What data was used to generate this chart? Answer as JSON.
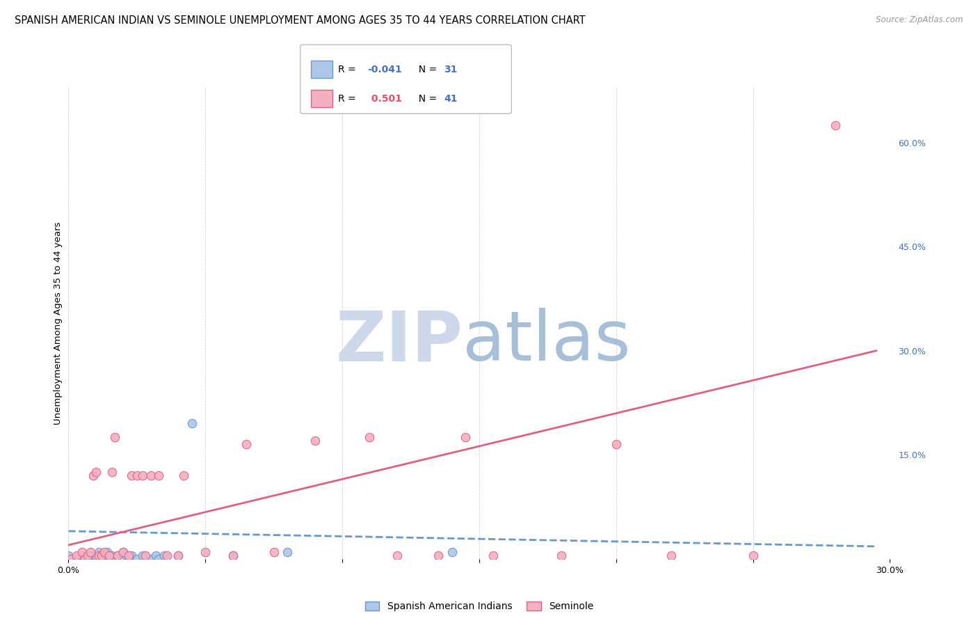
{
  "title": "SPANISH AMERICAN INDIAN VS SEMINOLE UNEMPLOYMENT AMONG AGES 35 TO 44 YEARS CORRELATION CHART",
  "source": "Source: ZipAtlas.com",
  "ylabel": "Unemployment Among Ages 35 to 44 years",
  "xlim": [
    0.0,
    0.3
  ],
  "ylim": [
    0.0,
    0.68
  ],
  "right_yticks": [
    0.0,
    0.15,
    0.3,
    0.45,
    0.6
  ],
  "right_ytick_labels": [
    "",
    "15.0%",
    "30.0%",
    "45.0%",
    "60.0%"
  ],
  "grid_color": "#c8c8c8",
  "background_color": "#ffffff",
  "series1_name": "Spanish American Indians",
  "series1_color": "#aec6e8",
  "series1_edge_color": "#6699cc",
  "series1_R": "-0.041",
  "series1_N": "31",
  "series1_x": [
    0.0,
    0.003,
    0.005,
    0.007,
    0.008,
    0.009,
    0.01,
    0.01,
    0.011,
    0.012,
    0.013,
    0.014,
    0.015,
    0.016,
    0.017,
    0.018,
    0.02,
    0.021,
    0.022,
    0.023,
    0.025,
    0.027,
    0.03,
    0.032,
    0.033,
    0.035,
    0.04,
    0.045,
    0.06,
    0.08,
    0.14
  ],
  "series1_y": [
    0.005,
    0.0,
    0.005,
    0.0,
    0.005,
    0.0,
    0.0,
    0.005,
    0.01,
    0.0,
    0.005,
    0.01,
    0.0,
    0.005,
    0.0,
    0.005,
    0.01,
    0.005,
    0.0,
    0.005,
    0.0,
    0.005,
    0.0,
    0.005,
    0.0,
    0.005,
    0.005,
    0.195,
    0.005,
    0.01,
    0.01
  ],
  "series2_name": "Seminole",
  "series2_color": "#f4b0c0",
  "series2_edge_color": "#e06080",
  "series2_R": "0.501",
  "series2_N": "41",
  "series2_x": [
    0.001,
    0.003,
    0.005,
    0.006,
    0.007,
    0.008,
    0.009,
    0.01,
    0.011,
    0.012,
    0.013,
    0.015,
    0.016,
    0.017,
    0.018,
    0.02,
    0.022,
    0.023,
    0.025,
    0.027,
    0.028,
    0.03,
    0.033,
    0.036,
    0.04,
    0.042,
    0.05,
    0.06,
    0.065,
    0.075,
    0.09,
    0.11,
    0.12,
    0.135,
    0.145,
    0.155,
    0.18,
    0.2,
    0.22,
    0.25,
    0.28
  ],
  "series2_y": [
    0.0,
    0.005,
    0.01,
    0.0,
    0.005,
    0.01,
    0.12,
    0.125,
    0.005,
    0.005,
    0.01,
    0.005,
    0.125,
    0.175,
    0.005,
    0.01,
    0.005,
    0.12,
    0.12,
    0.12,
    0.005,
    0.12,
    0.12,
    0.005,
    0.005,
    0.12,
    0.01,
    0.005,
    0.165,
    0.01,
    0.17,
    0.175,
    0.005,
    0.005,
    0.175,
    0.005,
    0.005,
    0.165,
    0.005,
    0.005,
    0.625
  ],
  "trendline1_color": "#6699cc",
  "trendline1_style": "--",
  "trendline1_x0": 0.0,
  "trendline1_x1": 0.295,
  "trendline1_y0": 0.04,
  "trendline1_y1": 0.018,
  "trendline2_color": "#e06080",
  "trendline2_style": "-",
  "trendline2_x0": 0.0,
  "trendline2_x1": 0.295,
  "trendline2_y0": 0.02,
  "trendline2_y1": 0.3,
  "legend_R1_color": "#4472c4",
  "legend_R2_color": "#e8506a",
  "legend_N_color": "#4472c4",
  "title_fontsize": 10.5,
  "ylabel_fontsize": 9.5,
  "tick_fontsize": 9,
  "right_tick_color": "#4472c4",
  "marker_size": 80
}
